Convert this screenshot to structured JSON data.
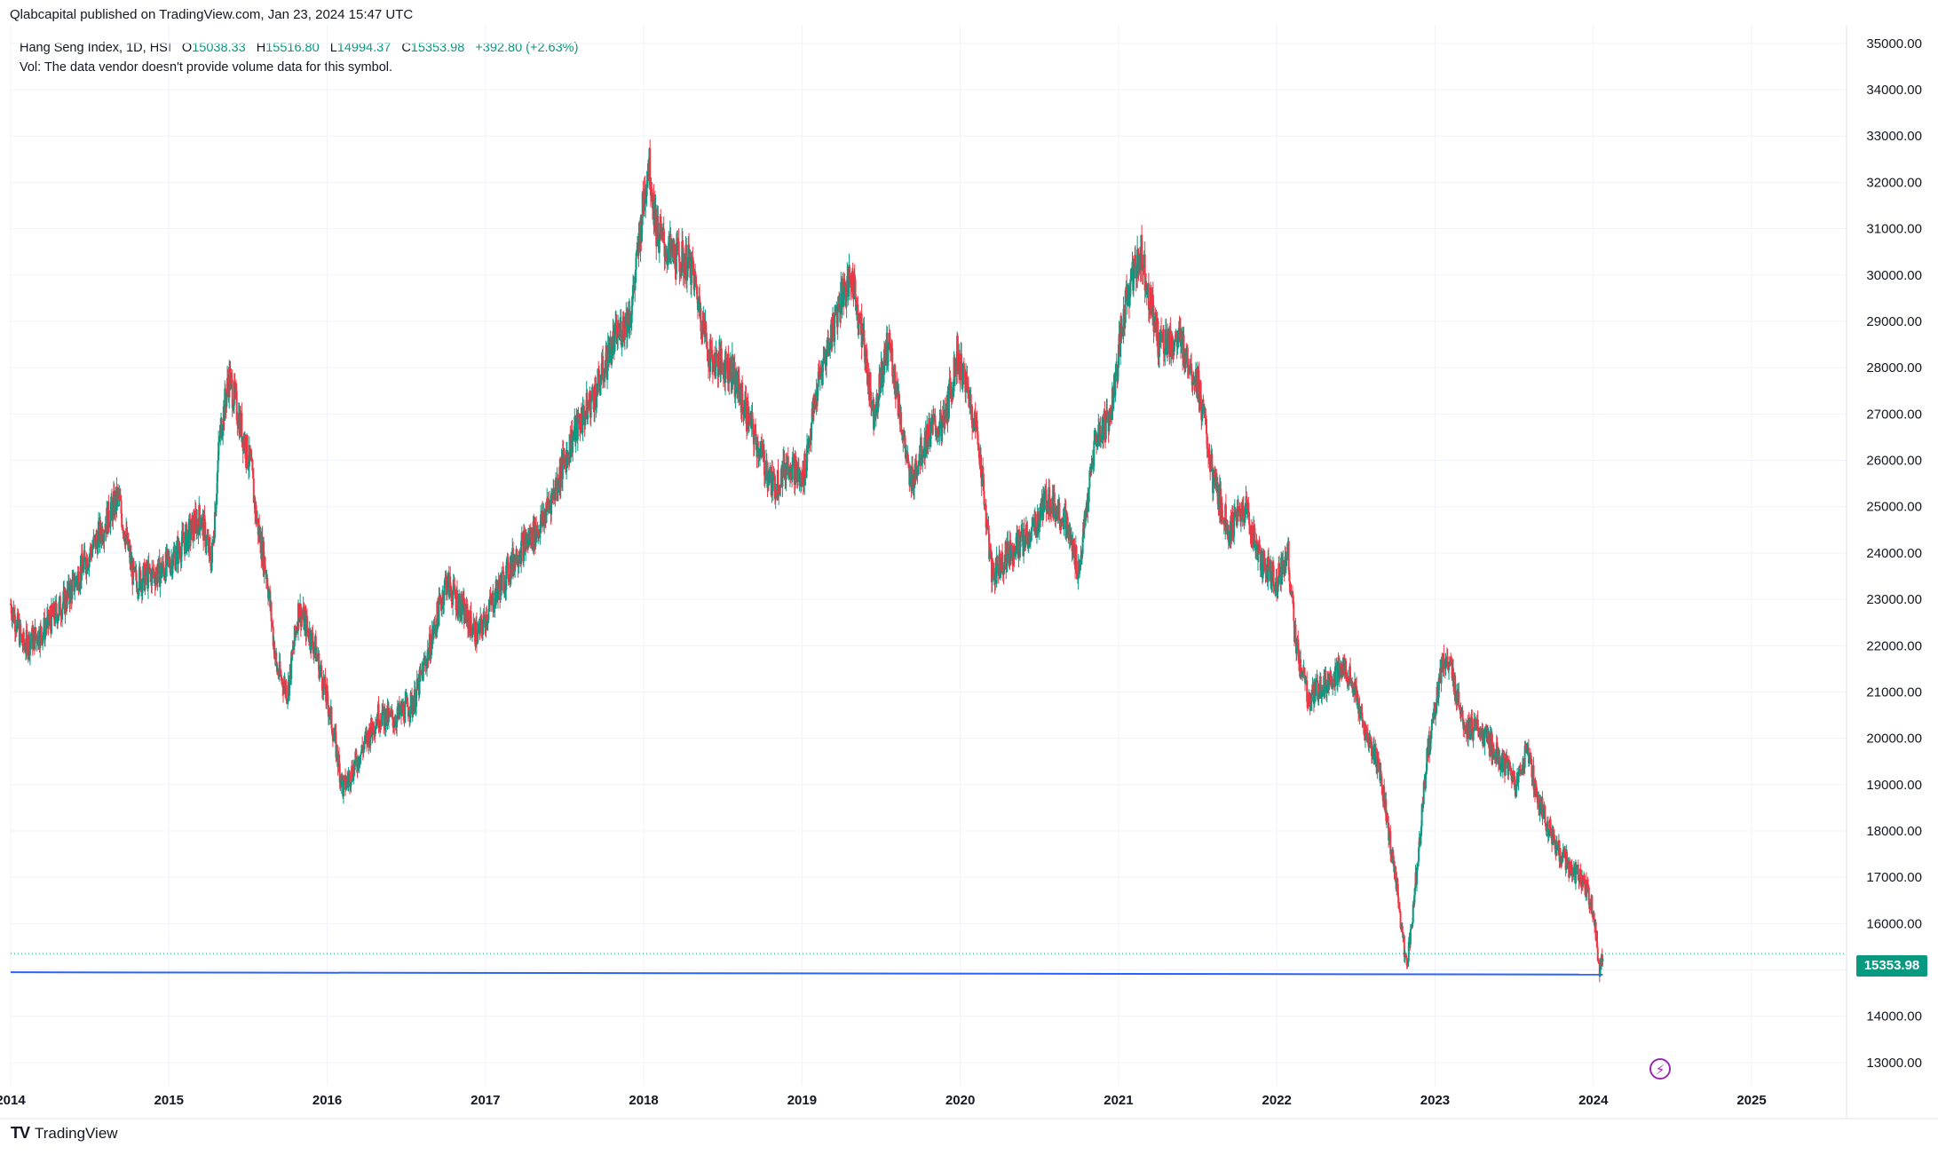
{
  "header": {
    "publisher_line": "Qlabcapital published on TradingView.com, Jan 23, 2024 15:47 UTC"
  },
  "legend": {
    "symbol": "Hang Seng Index, 1D, HSI",
    "open_label": "O",
    "open": "15038.33",
    "high_label": "H",
    "high": "15516.80",
    "low_label": "L",
    "low": "14994.37",
    "close_label": "C",
    "close": "15353.98",
    "change": "+392.80 (+2.63%)",
    "volume_note": "Vol: The data vendor doesn't provide volume data for this symbol."
  },
  "price_tag": "15353.98",
  "brand": {
    "name": "TradingView",
    "logo": "TV"
  },
  "icons": {
    "flash": "lightning-icon"
  },
  "colors": {
    "up": "#089981",
    "down": "#f23645",
    "trendline": "#2962ff",
    "grid": "#f0f3fa"
  },
  "chart_data": {
    "type": "candlestick",
    "title": "",
    "x_tick_labels": [
      "2014",
      "2015",
      "2016",
      "2017",
      "2018",
      "2019",
      "2020",
      "2021",
      "2022",
      "2023",
      "2024",
      "2025"
    ],
    "y_tick_labels": [
      "13000.00",
      "14000.00",
      "15000.00",
      "16000.00",
      "17000.00",
      "18000.00",
      "19000.00",
      "20000.00",
      "21000.00",
      "22000.00",
      "23000.00",
      "24000.00",
      "25000.00",
      "26000.00",
      "27000.00",
      "28000.00",
      "29000.00",
      "30000.00",
      "31000.00",
      "32000.00",
      "33000.00",
      "34000.00",
      "35000.00"
    ],
    "ylim": [
      12500,
      35400
    ],
    "xlim": [
      2014.0,
      2025.6
    ],
    "series": [
      {
        "path_points": [
          [
            2014.0,
            22900
          ],
          [
            2014.08,
            22000
          ],
          [
            2014.2,
            22300
          ],
          [
            2014.35,
            23000
          ],
          [
            2014.5,
            24000
          ],
          [
            2014.68,
            25200
          ],
          [
            2014.78,
            23400
          ],
          [
            2014.95,
            23600
          ],
          [
            2015.05,
            24000
          ],
          [
            2015.2,
            24800
          ],
          [
            2015.27,
            23800
          ],
          [
            2015.32,
            26500
          ],
          [
            2015.38,
            27800
          ],
          [
            2015.45,
            26800
          ],
          [
            2015.52,
            25800
          ],
          [
            2015.55,
            24800
          ],
          [
            2015.62,
            23500
          ],
          [
            2015.68,
            21500
          ],
          [
            2015.75,
            21000
          ],
          [
            2015.82,
            22800
          ],
          [
            2015.92,
            22000
          ],
          [
            2016.02,
            20500
          ],
          [
            2016.1,
            18900
          ],
          [
            2016.2,
            19600
          ],
          [
            2016.32,
            20500
          ],
          [
            2016.42,
            20400
          ],
          [
            2016.55,
            20800
          ],
          [
            2016.65,
            22000
          ],
          [
            2016.75,
            23400
          ],
          [
            2016.85,
            22800
          ],
          [
            2016.95,
            22200
          ],
          [
            2017.05,
            23000
          ],
          [
            2017.2,
            24000
          ],
          [
            2017.35,
            24600
          ],
          [
            2017.45,
            25500
          ],
          [
            2017.55,
            26500
          ],
          [
            2017.7,
            27500
          ],
          [
            2017.8,
            28500
          ],
          [
            2017.92,
            29200
          ],
          [
            2018.03,
            32500
          ],
          [
            2018.08,
            31000
          ],
          [
            2018.15,
            30500
          ],
          [
            2018.3,
            30200
          ],
          [
            2018.42,
            28200
          ],
          [
            2018.55,
            28000
          ],
          [
            2018.7,
            26500
          ],
          [
            2018.82,
            25400
          ],
          [
            2018.92,
            26000
          ],
          [
            2019.0,
            25500
          ],
          [
            2019.1,
            27600
          ],
          [
            2019.25,
            29600
          ],
          [
            2019.32,
            29900
          ],
          [
            2019.4,
            28300
          ],
          [
            2019.45,
            27000
          ],
          [
            2019.55,
            28600
          ],
          [
            2019.62,
            27000
          ],
          [
            2019.68,
            25500
          ],
          [
            2019.8,
            26600
          ],
          [
            2019.9,
            26800
          ],
          [
            2019.98,
            28300
          ],
          [
            2020.06,
            27300
          ],
          [
            2020.12,
            26300
          ],
          [
            2020.2,
            23500
          ],
          [
            2020.3,
            24000
          ],
          [
            2020.45,
            24400
          ],
          [
            2020.55,
            25200
          ],
          [
            2020.65,
            24800
          ],
          [
            2020.75,
            23600
          ],
          [
            2020.85,
            26400
          ],
          [
            2020.95,
            27000
          ],
          [
            2021.05,
            29500
          ],
          [
            2021.14,
            30500
          ],
          [
            2021.25,
            28600
          ],
          [
            2021.4,
            28500
          ],
          [
            2021.5,
            27700
          ],
          [
            2021.6,
            25500
          ],
          [
            2021.7,
            24500
          ],
          [
            2021.8,
            25000
          ],
          [
            2021.9,
            23800
          ],
          [
            2022.0,
            23400
          ],
          [
            2022.07,
            24000
          ],
          [
            2022.12,
            22000
          ],
          [
            2022.2,
            20800
          ],
          [
            2022.3,
            21200
          ],
          [
            2022.45,
            21500
          ],
          [
            2022.55,
            20200
          ],
          [
            2022.65,
            19300
          ],
          [
            2022.75,
            17000
          ],
          [
            2022.82,
            15000
          ],
          [
            2022.88,
            17000
          ],
          [
            2022.95,
            19600
          ],
          [
            2023.05,
            21700
          ],
          [
            2023.1,
            21400
          ],
          [
            2023.2,
            20200
          ],
          [
            2023.3,
            20100
          ],
          [
            2023.42,
            19500
          ],
          [
            2023.52,
            19000
          ],
          [
            2023.58,
            19800
          ],
          [
            2023.65,
            18700
          ],
          [
            2023.75,
            17800
          ],
          [
            2023.85,
            17200
          ],
          [
            2023.92,
            17000
          ],
          [
            2024.0,
            16300
          ],
          [
            2024.04,
            14961
          ],
          [
            2024.06,
            15353.98
          ]
        ]
      }
    ],
    "trendline": {
      "start": [
        2014.0,
        14950
      ],
      "end": [
        2024.06,
        14900
      ]
    },
    "last_price_line": 15353.98,
    "grid": true
  }
}
